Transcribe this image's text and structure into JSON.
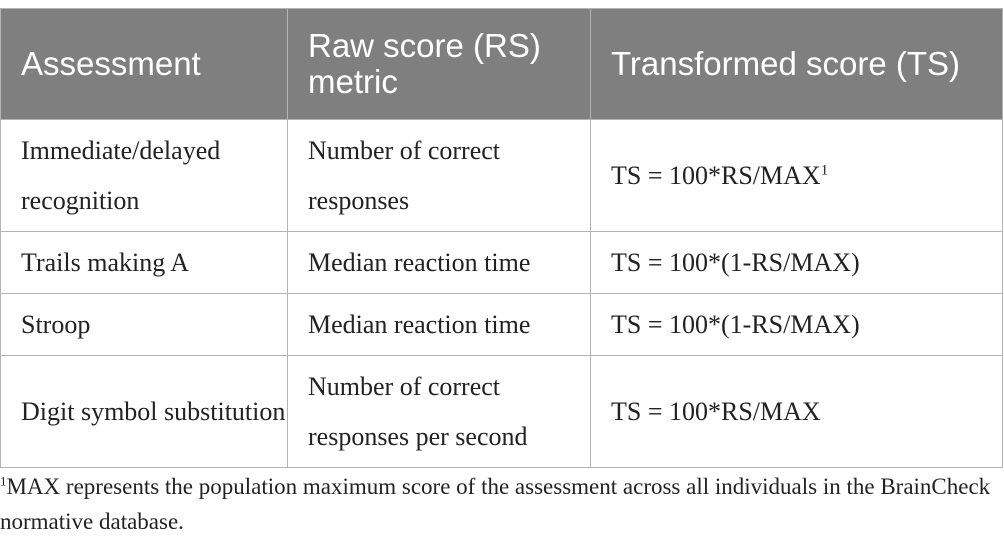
{
  "table": {
    "headers": [
      "Assessment",
      "Raw score (RS) metric",
      "Transformed score (TS)"
    ],
    "rows": [
      {
        "assessment": "Immediate/delayed recognition",
        "metric": "Number of correct responses",
        "formula": "TS = 100*RS/MAX",
        "formula_sup": "1"
      },
      {
        "assessment": "Trails making A",
        "metric": "Median reaction time",
        "formula": "TS = 100*(1-RS/MAX)"
      },
      {
        "assessment": "Stroop",
        "metric": "Median reaction time",
        "formula": "TS = 100*(1-RS/MAX)"
      },
      {
        "assessment": "Digit symbol substitution",
        "metric": "Number of correct responses per second",
        "formula": "TS = 100*RS/MAX"
      }
    ]
  },
  "footnote": {
    "marker": "1",
    "text": "MAX represents the population maximum score of the assessment across all individuals in the BrainCheck normative database."
  },
  "colors": {
    "header_bg": "#7f7f7f",
    "header_text": "#ffffff",
    "border": "#b3b3b3",
    "body_text": "#222222"
  }
}
